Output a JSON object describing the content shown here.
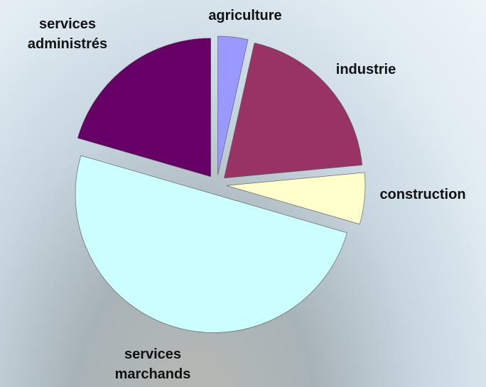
{
  "chart_data": {
    "type": "pie",
    "categories": [
      "agriculture",
      "industrie",
      "construction",
      "services marchands",
      "services administrés"
    ],
    "values": [
      3.5,
      20,
      6,
      50,
      20.5
    ],
    "colors": [
      "#9999ff",
      "#993366",
      "#ffffcc",
      "#ccffff",
      "#660066"
    ]
  }
}
